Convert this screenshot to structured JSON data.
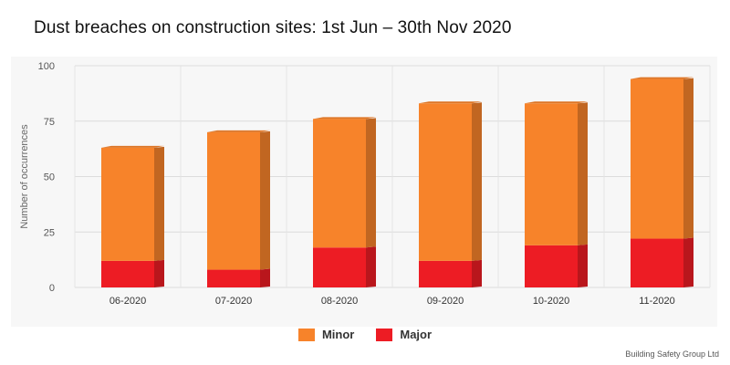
{
  "title": "Dust breaches on construction sites: 1st Jun – 30th Nov 2020",
  "source": "Building Safety Group Ltd",
  "chart_data": {
    "type": "bar",
    "stacked": true,
    "categories": [
      "06-2020",
      "07-2020",
      "08-2020",
      "09-2020",
      "10-2020",
      "11-2020"
    ],
    "series": [
      {
        "name": "Major",
        "color": "#ed1c24",
        "values": [
          12,
          8,
          18,
          12,
          19,
          22
        ]
      },
      {
        "name": "Minor",
        "color": "#f7832a",
        "values": [
          51,
          62,
          58,
          71,
          64,
          72
        ]
      }
    ],
    "legend_order": [
      "Minor",
      "Major"
    ],
    "ylabel": "Number of occurrences",
    "xlabel": "",
    "ylim": [
      0,
      100
    ],
    "yticks": [
      0,
      25,
      50,
      75,
      100
    ],
    "grid": true,
    "legend_position": "bottom-center"
  }
}
